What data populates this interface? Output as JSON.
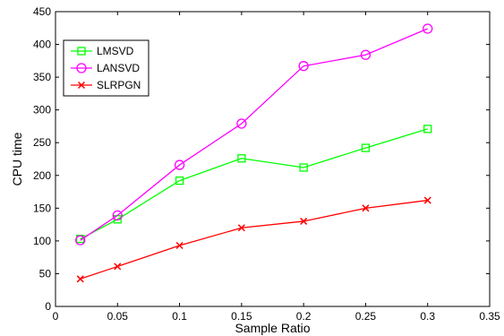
{
  "chart_data": {
    "type": "line",
    "title": "",
    "xlabel": "Sample Ratio",
    "ylabel": "CPU time",
    "xlim": [
      0,
      0.35
    ],
    "ylim": [
      0,
      450
    ],
    "xticks": [
      0,
      0.05,
      0.1,
      0.15,
      0.2,
      0.25,
      0.3,
      0.35
    ],
    "xtick_labels": [
      "0",
      "0.05",
      "0.1",
      "0.15",
      "0.2",
      "0.25",
      "0.3",
      "0.35"
    ],
    "yticks": [
      0,
      50,
      100,
      150,
      200,
      250,
      300,
      350,
      400,
      450
    ],
    "ytick_labels": [
      "0",
      "50",
      "100",
      "150",
      "200",
      "250",
      "300",
      "350",
      "400",
      "450"
    ],
    "grid": false,
    "legend_position": "top-left",
    "x": [
      0.02,
      0.05,
      0.1,
      0.15,
      0.2,
      0.25,
      0.3
    ],
    "series": [
      {
        "name": "LMSVD",
        "color": "#00ff00",
        "marker": "square",
        "values": [
          103,
          133,
          192,
          226,
          212,
          242,
          271
        ]
      },
      {
        "name": "LANSVD",
        "color": "#ff00ff",
        "marker": "circle",
        "values": [
          101,
          139,
          216,
          279,
          367,
          384,
          424
        ]
      },
      {
        "name": "SLRPGN",
        "color": "#ff0000",
        "marker": "x",
        "values": [
          42,
          61,
          93,
          120,
          130,
          150,
          162
        ]
      }
    ]
  }
}
